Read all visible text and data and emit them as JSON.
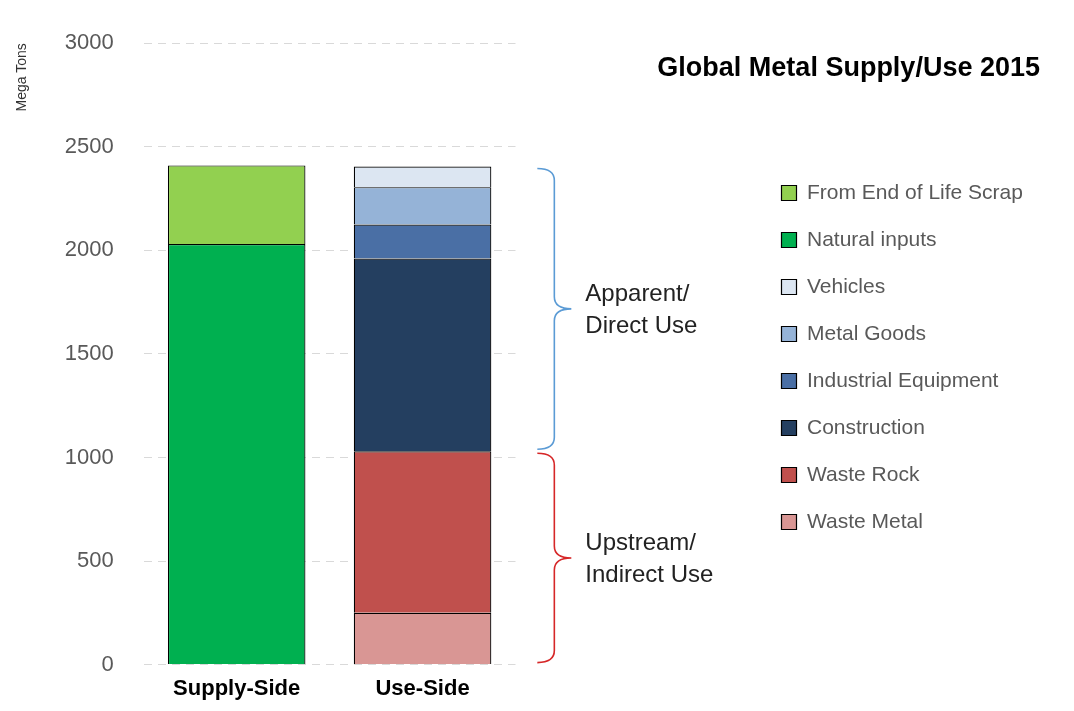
{
  "chart_data": {
    "type": "bar",
    "title": "Global Metal Supply/Use 2015",
    "ylabel": "Mega Tons",
    "categories": [
      "Supply-Side",
      "Use-Side"
    ],
    "stacked": true,
    "series": [
      {
        "name": "Waste Metal",
        "color": "#d99694",
        "values": [
          null,
          250
        ]
      },
      {
        "name": "Waste Rock",
        "color": "#c0504d",
        "values": [
          null,
          780
        ]
      },
      {
        "name": "Construction",
        "color": "#243f60",
        "values": [
          null,
          930
        ]
      },
      {
        "name": "Industrial Equipment",
        "color": "#4a6fa5",
        "values": [
          null,
          165
        ]
      },
      {
        "name": "Metal Goods",
        "color": "#95b3d7",
        "values": [
          null,
          180
        ]
      },
      {
        "name": "Vehicles",
        "color": "#dce6f2",
        "values": [
          null,
          100
        ]
      },
      {
        "name": "Natural inputs",
        "color": "#00b050",
        "values": [
          2030,
          null
        ]
      },
      {
        "name": "From End of Life Scrap",
        "color": "#92d050",
        "values": [
          380,
          null
        ]
      }
    ],
    "ylim": [
      0,
      3000
    ],
    "yticks": [
      0,
      500,
      1000,
      1500,
      2000,
      2500,
      3000
    ],
    "grid": "y",
    "legend": "right",
    "annotations": [
      "Apparent/\nDirect Use",
      "Upstream/\nIndirect Use"
    ]
  }
}
